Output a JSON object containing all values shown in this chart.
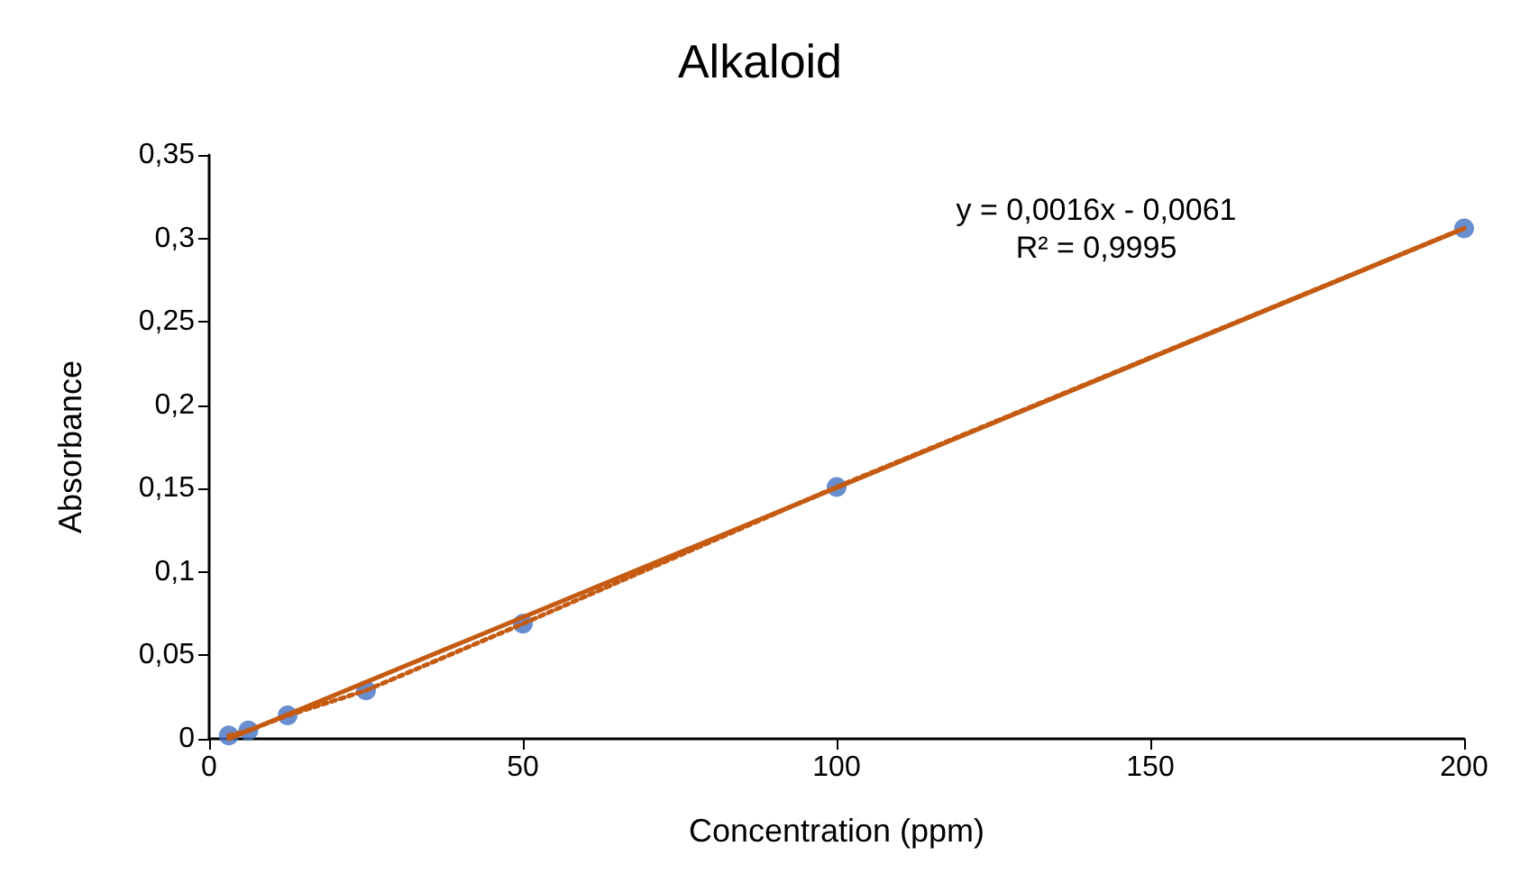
{
  "chart_data": {
    "type": "scatter",
    "title": "Alkaloid",
    "xlabel": "Concentration (ppm)",
    "ylabel": "Absorbance",
    "x": [
      3.125,
      6.25,
      12.5,
      25,
      50,
      100,
      200
    ],
    "series": [
      {
        "type": "line",
        "color": "#c55a11",
        "line_style": "dotted",
        "marker": "none",
        "values": [
          0.002,
          0.005,
          0.014,
          0.029,
          0.069,
          0.151,
          0.306
        ]
      },
      {
        "color": "#4472c4",
        "marker": "circle",
        "values": [
          0.002,
          0.005,
          0.014,
          0.029,
          0.069,
          0.151,
          0.306
        ]
      },
      {
        "type": "line",
        "color": "#c55a11",
        "line_style": "solid",
        "marker": "none",
        "x": [
          3.125,
          200
        ],
        "values": [
          0,
          0.306
        ]
      }
    ],
    "xlim": [
      0,
      200
    ],
    "xticks": [
      0,
      50,
      100,
      150,
      200
    ],
    "ylim": [
      0,
      0.35
    ],
    "yticks": [
      0,
      {
        "value": 0.05,
        "label": "0,05"
      },
      {
        "value": 0.1,
        "label": "0,1"
      },
      {
        "value": 0.15,
        "label": "0,15"
      },
      {
        "value": 0.2,
        "label": "0,2"
      },
      {
        "value": 0.25,
        "label": "0,25"
      },
      {
        "value": 0.3,
        "label": "0,3"
      },
      {
        "value": 0.35,
        "label": "0,35"
      }
    ],
    "annotations": [
      "y = 0,0016x - 0,0061\nR² = 0,9995"
    ],
    "grid": false
  }
}
